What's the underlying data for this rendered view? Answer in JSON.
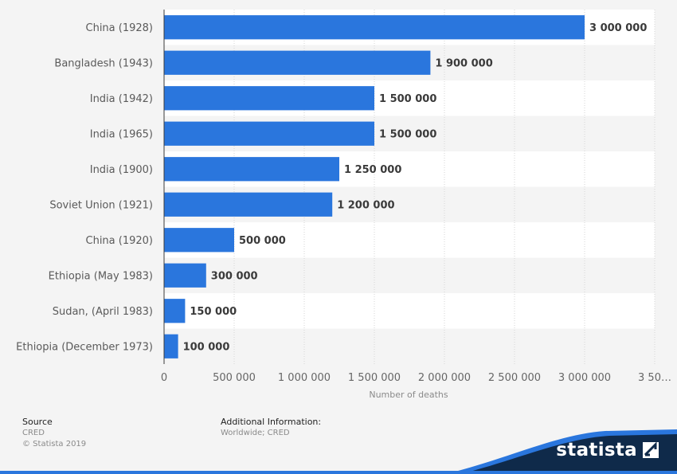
{
  "chart_data": {
    "type": "bar",
    "orientation": "horizontal",
    "categories": [
      "China (1928)",
      "Bangladesh (1943)",
      "India (1942)",
      "India (1965)",
      "India (1900)",
      "Soviet Union (1921)",
      "China (1920)",
      "Ethiopia (May 1983)",
      "Sudan, (April 1983)",
      "Ethiopia (December 1973)"
    ],
    "values": [
      3000000,
      1900000,
      1500000,
      1500000,
      1250000,
      1200000,
      500000,
      300000,
      150000,
      100000
    ],
    "value_labels": [
      "3 000 000",
      "1 900 000",
      "1 500 000",
      "1 500 000",
      "1 250 000",
      "1 200 000",
      "500 000",
      "300 000",
      "150 000",
      "100 000"
    ],
    "xlim": [
      0,
      3500000
    ],
    "xticks": [
      0,
      500000,
      1000000,
      1500000,
      2000000,
      2500000,
      3000000,
      3500000
    ],
    "xtick_labels": [
      "0",
      "500 000",
      "1 000 000",
      "1 500 000",
      "2 000 000",
      "2 500 000",
      "3 000 000",
      "3 50…"
    ],
    "xlabel": "Number of deaths",
    "ylabel": "",
    "title": "",
    "grid": true,
    "bar_color": "#2a76dd"
  },
  "footer": {
    "source_heading": "Source",
    "source_name": "CRED",
    "copyright": "© Statista 2019",
    "info_heading": "Additional Information:",
    "info_text": "Worldwide; CRED"
  },
  "brand": {
    "name": "statista",
    "icon": "statista-logo-icon",
    "band_color": "#0f2a4a",
    "accent_color": "#2a76dd"
  }
}
